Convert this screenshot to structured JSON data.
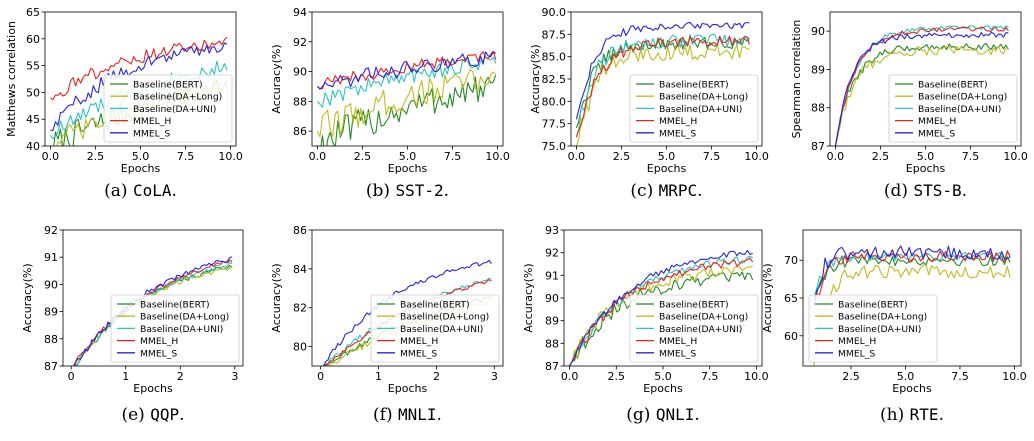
{
  "figure": {
    "legend_default": [
      "Baseline(BERT)",
      "Baseline(DA+Long)",
      "Baseline(DA+UNI)",
      "MMEL_H",
      "MMEL_S"
    ],
    "series_colors": [
      "#228B22",
      "#BDBD1E",
      "#2BC4C4",
      "#E8231E",
      "#2626D9"
    ]
  },
  "chart_data": [
    {
      "type": "line",
      "caption_prefix": "(a) ",
      "caption_tag": "CoLA",
      "caption_suffix": ".",
      "xlabel": "Epochs",
      "ylabel": "Matthews correlation",
      "xlim": [
        -0.3,
        10.3
      ],
      "ylim": [
        40,
        65
      ],
      "xticks": [
        0,
        2.5,
        5,
        7.5,
        10
      ],
      "xtick_labels": [
        "0.0",
        "2.5",
        "5.0",
        "7.5",
        "10.0"
      ],
      "yticks": [
        40,
        45,
        50,
        55,
        60,
        65
      ],
      "ytick_labels": [
        "40",
        "45",
        "50",
        "55",
        "60",
        "65"
      ],
      "legend": [
        "Baseline(BERT)",
        "Baseline(DA+Long)",
        "Baseline(DA+UNI)",
        "MMEL_H",
        "MMEL_S"
      ],
      "legend_position": "lower-right",
      "x_end": 9.8,
      "series": [
        {
          "name": "Baseline(BERT)",
          "start": 40,
          "rise": 9.5,
          "final": 57,
          "noise": 2.6
        },
        {
          "name": "Baseline(DA+Long)",
          "start": 40,
          "rise": 10.0,
          "final": 57.5,
          "noise": 2.3
        },
        {
          "name": "Baseline(DA+UNI)",
          "start": 42,
          "rise": 7.5,
          "final": 59.5,
          "noise": 1.8
        },
        {
          "name": "MMEL_H",
          "start": 49,
          "rise": 5.0,
          "final": 61,
          "noise": 1.4
        },
        {
          "name": "MMEL_S",
          "start": 43,
          "rise": 4.0,
          "final": 60,
          "noise": 1.5
        }
      ]
    },
    {
      "type": "line",
      "caption_prefix": "(b) ",
      "caption_tag": "SST-2",
      "caption_suffix": ".",
      "xlabel": "Epochs",
      "ylabel": "Accuracy(%)",
      "xlim": [
        -0.3,
        10.3
      ],
      "ylim": [
        85,
        94
      ],
      "xticks": [
        0,
        2.5,
        5,
        7.5,
        10
      ],
      "xtick_labels": [
        "0.0",
        "2.5",
        "5.0",
        "7.5",
        "10.0"
      ],
      "yticks": [
        86,
        88,
        90,
        92,
        94
      ],
      "ytick_labels": [
        "86",
        "88",
        "90",
        "92",
        "94"
      ],
      "legend": [],
      "legend_position": "none",
      "x_end": 9.9,
      "series": [
        {
          "name": "Baseline(BERT)",
          "start": 85,
          "rise": 9.0,
          "final": 91.0,
          "noise": 1.2
        },
        {
          "name": "Baseline(DA+Long)",
          "start": 86,
          "rise": 9.0,
          "final": 91.4,
          "noise": 1.1
        },
        {
          "name": "Baseline(DA+UNI)",
          "start": 88,
          "rise": 10.0,
          "final": 92.3,
          "noise": 0.6
        },
        {
          "name": "MMEL_H",
          "start": 89,
          "rise": 12.0,
          "final": 92.8,
          "noise": 0.45
        },
        {
          "name": "MMEL_S",
          "start": 89,
          "rise": 12.0,
          "final": 92.5,
          "noise": 0.55
        }
      ]
    },
    {
      "type": "line",
      "caption_prefix": "(c) ",
      "caption_tag": "MRPC",
      "caption_suffix": ".",
      "xlabel": "Epochs",
      "ylabel": "Accuracy(%)",
      "xlim": [
        -0.3,
        10.3
      ],
      "ylim": [
        75,
        90
      ],
      "xticks": [
        0,
        2.5,
        5,
        7.5,
        10
      ],
      "xtick_labels": [
        "0.0",
        "2.5",
        "5.0",
        "7.5",
        "10.0"
      ],
      "yticks": [
        75,
        77.5,
        80,
        82.5,
        85,
        87.5,
        90
      ],
      "ytick_labels": [
        "75.0",
        "77.5",
        "80.0",
        "82.5",
        "85.0",
        "87.5",
        "90.0"
      ],
      "legend": [
        "Baseline(BERT)",
        "Baseline(DA+Long)",
        "Baseline(DA+UNI)",
        "MMEL_H",
        "MMEL_S"
      ],
      "legend_position": "lower-right",
      "x_end": 9.6,
      "series": [
        {
          "name": "Baseline(BERT)",
          "start": 77,
          "rise": 1.0,
          "final": 86.5,
          "noise": 1.2
        },
        {
          "name": "Baseline(DA+Long)",
          "start": 75,
          "rise": 1.0,
          "final": 85.5,
          "noise": 1.5
        },
        {
          "name": "Baseline(DA+UNI)",
          "start": 76,
          "rise": 1.0,
          "final": 86.8,
          "noise": 1.3
        },
        {
          "name": "MMEL_H",
          "start": 76,
          "rise": 1.2,
          "final": 86.8,
          "noise": 1.0
        },
        {
          "name": "MMEL_S",
          "start": 78,
          "rise": 1.0,
          "final": 88.5,
          "noise": 0.7
        }
      ]
    },
    {
      "type": "line",
      "caption_prefix": "(d) ",
      "caption_tag": "STS-B",
      "caption_suffix": ".",
      "xlabel": "Epochs",
      "ylabel": "Spearman correlation",
      "xlim": [
        -0.3,
        10.3
      ],
      "ylim": [
        87,
        90.5
      ],
      "xticks": [
        0,
        2.5,
        5,
        7.5,
        10
      ],
      "xtick_labels": [
        "0.0",
        "2.5",
        "5.0",
        "7.5",
        "10.0"
      ],
      "yticks": [
        87,
        88,
        89,
        90
      ],
      "ytick_labels": [
        "87",
        "88",
        "89",
        "90"
      ],
      "legend": [
        "Baseline(BERT)",
        "Baseline(DA+Long)",
        "Baseline(DA+UNI)",
        "MMEL_H",
        "MMEL_S"
      ],
      "legend_position": "lower-right",
      "x_end": 9.6,
      "series": [
        {
          "name": "Baseline(BERT)",
          "start": 87,
          "rise": 1.0,
          "final": 89.6,
          "noise": 0.15
        },
        {
          "name": "Baseline(DA+Long)",
          "start": 87,
          "rise": 1.0,
          "final": 89.5,
          "noise": 0.2
        },
        {
          "name": "Baseline(DA+UNI)",
          "start": 87,
          "rise": 1.1,
          "final": 90.1,
          "noise": 0.1
        },
        {
          "name": "MMEL_H",
          "start": 87,
          "rise": 1.1,
          "final": 90.05,
          "noise": 0.1
        },
        {
          "name": "MMEL_S",
          "start": 87,
          "rise": 0.9,
          "final": 89.9,
          "noise": 0.12
        }
      ]
    },
    {
      "type": "line",
      "caption_prefix": "(e) ",
      "caption_tag": "QQP",
      "caption_suffix": ".",
      "xlabel": "Epochs",
      "ylabel": "Accuracy(%)",
      "xlim": [
        -0.15,
        3.15
      ],
      "ylim": [
        87,
        92
      ],
      "xticks": [
        0,
        1,
        2,
        3
      ],
      "xtick_labels": [
        "0",
        "1",
        "2",
        "3"
      ],
      "yticks": [
        87,
        88,
        89,
        90,
        91,
        92
      ],
      "ytick_labels": [
        "87",
        "88",
        "89",
        "90",
        "91",
        "92"
      ],
      "legend": [
        "Baseline(BERT)",
        "Baseline(DA+Long)",
        "Baseline(DA+UNI)",
        "MMEL_H",
        "MMEL_S"
      ],
      "legend_position": "lower-right",
      "x_end": 2.95,
      "series": [
        {
          "name": "Baseline(BERT)",
          "start": 86.8,
          "rise": 1.5,
          "final": 91.3,
          "noise": 0.12
        },
        {
          "name": "Baseline(DA+Long)",
          "start": 86.8,
          "rise": 1.3,
          "final": 91.0,
          "noise": 0.12
        },
        {
          "name": "Baseline(DA+UNI)",
          "start": 86.8,
          "rise": 1.5,
          "final": 91.4,
          "noise": 0.12
        },
        {
          "name": "MMEL_H",
          "start": 86.9,
          "rise": 1.6,
          "final": 91.6,
          "noise": 0.1
        },
        {
          "name": "MMEL_S",
          "start": 86.8,
          "rise": 1.5,
          "final": 91.6,
          "noise": 0.12
        }
      ]
    },
    {
      "type": "line",
      "caption_prefix": "(f) ",
      "caption_tag": "MNLI",
      "caption_suffix": ".",
      "xlabel": "Epochs",
      "ylabel": "Accuracy(%)",
      "xlim": [
        -0.15,
        3.15
      ],
      "ylim": [
        79,
        86
      ],
      "xticks": [
        0,
        1,
        2,
        3
      ],
      "xtick_labels": [
        "0",
        "1",
        "2",
        "3"
      ],
      "yticks": [
        80,
        82,
        84,
        86
      ],
      "ytick_labels": [
        "80",
        "82",
        "84",
        "86"
      ],
      "legend": [
        "Baseline(BERT)",
        "Baseline(DA+Long)",
        "Baseline(DA+UNI)",
        "MMEL_H",
        "MMEL_S"
      ],
      "legend_position": "lower-right",
      "x_end": 2.95,
      "series": [
        {
          "name": "Baseline(BERT)",
          "start": 78.8,
          "rise": 2.6,
          "final": 84.3,
          "noise": 0.15
        },
        {
          "name": "Baseline(DA+Long)",
          "start": 78.8,
          "rise": 2.8,
          "final": 84.1,
          "noise": 0.18
        },
        {
          "name": "Baseline(DA+UNI)",
          "start": 78.8,
          "rise": 2.2,
          "final": 85.1,
          "noise": 0.15
        },
        {
          "name": "MMEL_H",
          "start": 78.8,
          "rise": 2.4,
          "final": 85.3,
          "noise": 0.12
        },
        {
          "name": "MMEL_S",
          "start": 78.8,
          "rise": 1.3,
          "final": 85.0,
          "noise": 0.15
        }
      ]
    },
    {
      "type": "line",
      "caption_prefix": "(g) ",
      "caption_tag": "QNLI",
      "caption_suffix": ".",
      "xlabel": "Epochs",
      "ylabel": "Accuracy(%)",
      "xlim": [
        -0.3,
        10.3
      ],
      "ylim": [
        87,
        93
      ],
      "xticks": [
        0,
        2.5,
        5,
        7.5,
        10
      ],
      "xtick_labels": [
        "0.0",
        "2.5",
        "5.0",
        "7.5",
        "10.0"
      ],
      "yticks": [
        87,
        88,
        89,
        90,
        91,
        92,
        93
      ],
      "ytick_labels": [
        "87",
        "88",
        "89",
        "90",
        "91",
        "92",
        "93"
      ],
      "legend": [
        "Baseline(BERT)",
        "Baseline(DA+Long)",
        "Baseline(DA+UNI)",
        "MMEL_H",
        "MMEL_S"
      ],
      "legend_position": "lower-right",
      "x_end": 9.8,
      "series": [
        {
          "name": "Baseline(BERT)",
          "start": 87,
          "rise": 2.5,
          "final": 91.0,
          "noise": 0.4
        },
        {
          "name": "Baseline(DA+Long)",
          "start": 87,
          "rise": 2.5,
          "final": 91.3,
          "noise": 0.35
        },
        {
          "name": "Baseline(DA+UNI)",
          "start": 87,
          "rise": 3.0,
          "final": 91.9,
          "noise": 0.25
        },
        {
          "name": "MMEL_H",
          "start": 87,
          "rise": 3.0,
          "final": 91.8,
          "noise": 0.25
        },
        {
          "name": "MMEL_S",
          "start": 87,
          "rise": 3.2,
          "final": 92.3,
          "noise": 0.18
        }
      ]
    },
    {
      "type": "line",
      "caption_prefix": "(h) ",
      "caption_tag": "RTE",
      "caption_suffix": ".",
      "xlabel": "Epochs",
      "ylabel": "Accuracy(%)",
      "xlim": [
        0.3,
        10.3
      ],
      "ylim": [
        56,
        74
      ],
      "xticks": [
        2.5,
        5,
        7.5,
        10
      ],
      "xtick_labels": [
        "2.5",
        "5.0",
        "7.5",
        "10.0"
      ],
      "yticks": [
        60,
        65,
        70
      ],
      "ytick_labels": [
        "60",
        "65",
        "70"
      ],
      "legend": [
        "Baseline(BERT)",
        "Baseline(DA+Long)",
        "Baseline(DA+UNI)",
        "MMEL_H",
        "MMEL_S"
      ],
      "legend_position": "lower-left",
      "x_start": 0.8,
      "x_end": 9.8,
      "series": [
        {
          "name": "Baseline(BERT)",
          "start": 64,
          "rise": 0.4,
          "final": 70.0,
          "noise": 1.3
        },
        {
          "name": "Baseline(DA+Long)",
          "start": 56,
          "rise": 0.5,
          "final": 68.5,
          "noise": 1.6
        },
        {
          "name": "Baseline(DA+UNI)",
          "start": 65,
          "rise": 0.5,
          "final": 70.5,
          "noise": 1.0
        },
        {
          "name": "MMEL_H",
          "start": 64,
          "rise": 0.5,
          "final": 70.5,
          "noise": 1.4
        },
        {
          "name": "MMEL_S",
          "start": 64,
          "rise": 0.4,
          "final": 71.0,
          "noise": 1.6
        }
      ]
    }
  ]
}
